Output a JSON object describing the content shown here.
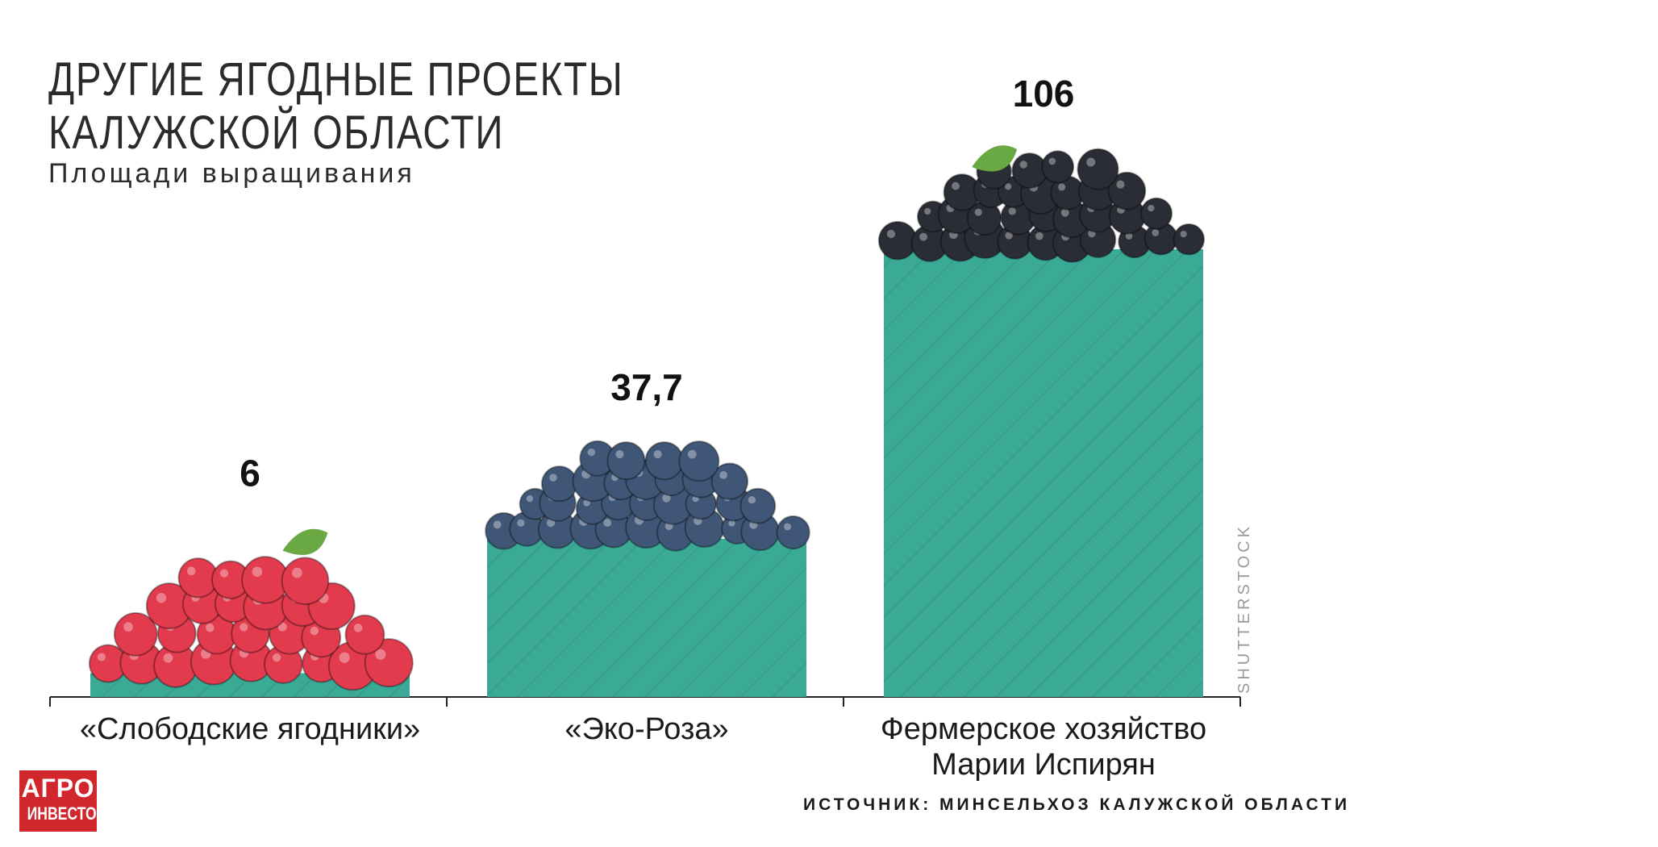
{
  "header": {
    "title_line1": "ДРУГИЕ ЯГОДНЫЕ ПРОЕКТЫ",
    "title_line2": "КАЛУЖСКОЙ ОБЛАСТИ",
    "subtitle": "Площади выращивания"
  },
  "chart_data": {
    "type": "bar",
    "title": "ДРУГИЕ ЯГОДНЫЕ ПРОЕКТЫ КАЛУЖСКОЙ ОБЛАСТИ",
    "subtitle": "Площади выращивания",
    "categories": [
      "«Слободские ягодники»",
      "«Эко-Роза»",
      "Фермерское хозяйство Марии Испирян"
    ],
    "category_lines": [
      [
        "«Слободские ягодники»"
      ],
      [
        "«Эко-Роза»"
      ],
      [
        "Фермерское хозяйство",
        "Марии Испирян"
      ]
    ],
    "values": [
      6,
      37.7,
      106
    ],
    "value_labels": [
      "6",
      "37,7",
      "106"
    ],
    "berries": [
      "raspberry",
      "blueberry",
      "blackcurrant"
    ],
    "ylim": [
      0,
      106
    ],
    "xlabel": "",
    "ylabel": "",
    "grid": false,
    "bar_color": "#3aaa96",
    "hatch_color": "#2b8878"
  },
  "footer": {
    "source": "ИСТОЧНИК: МИНСЕЛЬХОЗ КАЛУЖСКОЙ ОБЛАСТИ",
    "watermark": "SHUTTERSTOCK",
    "logo_line1": "АГРО",
    "logo_line2": "ИНВЕСТОР"
  },
  "colors": {
    "raspberry": "#e23b4e",
    "blueberry": "#3f5676",
    "blackcurrant": "#2b2d36",
    "leaf": "#6aa844",
    "logo": "#d1262c"
  }
}
